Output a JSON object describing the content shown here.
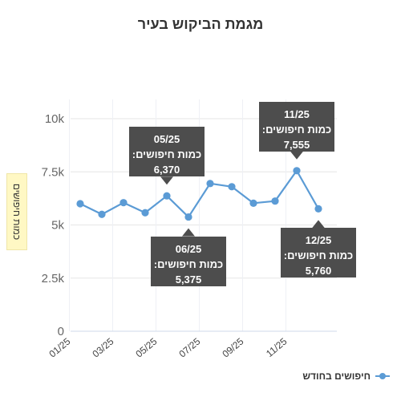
{
  "chart_data": {
    "type": "line",
    "title": "מגמת הביקוש בעיר",
    "ylabel": "כמות חיפושים",
    "xlabel": "",
    "ylim": [
      0,
      10000
    ],
    "yticks": [
      {
        "value": 0,
        "label": "0"
      },
      {
        "value": 2500,
        "label": "2.5k"
      },
      {
        "value": 5000,
        "label": "5k"
      },
      {
        "value": 7500,
        "label": "7.5k"
      },
      {
        "value": 10000,
        "label": "10k"
      }
    ],
    "categories": [
      "01/25",
      "02/25",
      "03/25",
      "04/25",
      "05/25",
      "06/25",
      "07/25",
      "08/25",
      "09/25",
      "10/25",
      "11/25",
      "12/25"
    ],
    "x_tick_labels": [
      "01/25",
      "03/25",
      "05/25",
      "07/25",
      "09/25",
      "11/25"
    ],
    "series": [
      {
        "name": "חיפושים בחודש",
        "color": "#5b9bd5",
        "values": [
          6000,
          5500,
          6050,
          5575,
          6370,
          5375,
          6950,
          6800,
          6025,
          6125,
          7555,
          5760
        ]
      }
    ],
    "grid": {
      "horizontal": true,
      "vertical": true
    },
    "legend": "bottom-right",
    "annotations": [
      {
        "category": "05/25",
        "line1": "05/25",
        "line2": "כמות חיפושים:",
        "line3": "6,370",
        "placement": "above"
      },
      {
        "category": "06/25",
        "line1": "06/25",
        "line2": "כמות חיפושים:",
        "line3": "5,375",
        "placement": "below"
      },
      {
        "category": "11/25",
        "line1": "11/25",
        "line2": "כמות חיפושים:",
        "line3": "7,555",
        "placement": "above"
      },
      {
        "category": "12/25",
        "line1": "12/25",
        "line2": "כמות חיפושים:",
        "line3": "5,760",
        "placement": "below"
      }
    ]
  }
}
